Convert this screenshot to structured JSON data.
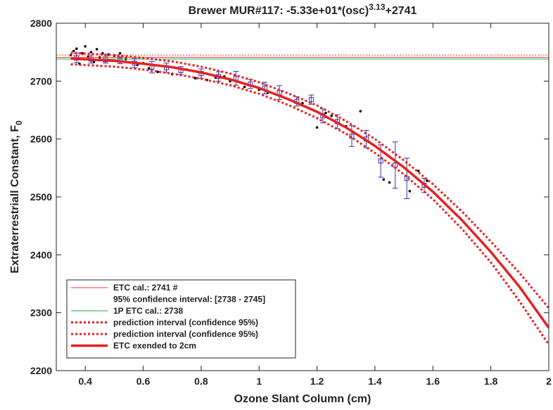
{
  "chart_data": {
    "type": "line",
    "title": "Brewer MUR#117: -5.33e+01*(osc)",
    "title_exponent": "3.13",
    "title_suffix": "+2741",
    "x_label": "Ozone Slant Column (cm)",
    "y_label": "Extraterrestriall Constant, F",
    "y_label_subscript": "0",
    "xlim": [
      0.3,
      2
    ],
    "ylim": [
      2200,
      2800
    ],
    "xticks": [
      0.4,
      0.6,
      0.8,
      1,
      1.2,
      1.4,
      1.6,
      1.8,
      2
    ],
    "yticks": [
      2200,
      2300,
      2400,
      2500,
      2600,
      2700,
      2800
    ],
    "grid": false,
    "legend": "lower left",
    "series": [
      {
        "type": "scatter",
        "color": "#000000",
        "x": [
          0.35,
          0.36,
          0.37,
          0.38,
          0.39,
          0.4,
          0.41,
          0.42,
          0.43,
          0.44,
          0.45,
          0.46,
          0.48,
          0.5,
          0.52,
          0.54,
          0.58,
          0.6,
          0.62,
          0.65,
          0.7,
          0.75,
          0.78,
          0.82,
          0.85,
          0.88,
          0.9,
          0.95,
          1.0,
          1.03,
          1.08,
          1.15,
          1.2,
          1.23,
          1.25,
          1.3,
          1.35,
          1.38,
          1.43,
          1.45,
          1.52,
          1.55,
          1.58
        ],
        "values": [
          2745,
          2752,
          2756,
          2730,
          2748,
          2760,
          2742,
          2750,
          2733,
          2755,
          2741,
          2748,
          2746,
          2744,
          2748,
          2738,
          2728,
          2731,
          2722,
          2716,
          2712,
          2720,
          2705,
          2702,
          2706,
          2708,
          2700,
          2690,
          2685,
          2680,
          2673,
          2662,
          2620,
          2645,
          2640,
          2622,
          2648,
          2595,
          2530,
          2525,
          2510,
          2545,
          2528
        ]
      },
      {
        "type": "errorbar",
        "color": "#3333aa",
        "x": [
          0.37,
          0.42,
          0.47,
          0.52,
          0.57,
          0.63,
          0.68,
          0.73,
          0.8,
          0.86,
          0.92,
          0.97,
          1.02,
          1.07,
          1.13,
          1.18,
          1.22,
          1.27,
          1.32,
          1.37,
          1.42,
          1.47,
          1.51,
          1.57
        ],
        "values": [
          2740,
          2738,
          2737,
          2736,
          2731,
          2724,
          2723,
          2718,
          2713,
          2708,
          2705,
          2695,
          2688,
          2680,
          2665,
          2668,
          2640,
          2630,
          2605,
          2600,
          2562,
          2555,
          2532,
          2520
        ],
        "errors": [
          8,
          7,
          6,
          6,
          8,
          10,
          8,
          7,
          8,
          8,
          12,
          8,
          10,
          12,
          8,
          8,
          12,
          12,
          18,
          15,
          28,
          40,
          35,
          12
        ]
      },
      {
        "type": "line",
        "name": [
          "ETC cal.: 2741  #",
          "95% confidence interval: [2738 - 2745]"
        ],
        "color": "#ff3333",
        "width": 1,
        "dash": "none",
        "x": [
          0.3,
          2
        ],
        "values": [
          2741,
          2741
        ]
      },
      {
        "type": "line",
        "color": "#ff3333",
        "width": 1,
        "dash": "2 2",
        "x": [
          0.3,
          2
        ],
        "values": [
          2745,
          2745
        ]
      },
      {
        "type": "line",
        "color": "#ff3333",
        "width": 1,
        "dash": "2 2",
        "x": [
          0.3,
          2
        ],
        "values": [
          2738,
          2738
        ]
      },
      {
        "type": "line",
        "name": [
          "1P ETC cal.: 2738"
        ],
        "color": "#22aa44",
        "width": 1,
        "dash": "none",
        "x": [
          0.3,
          2
        ],
        "values": [
          2738,
          2738
        ]
      },
      {
        "type": "line",
        "name": [
          "prediction interval (confidence 95%)"
        ],
        "color": "#e82020",
        "width": 3,
        "dash": "3 3",
        "x": [
          0.35,
          0.5,
          0.6,
          0.7,
          0.8,
          0.9,
          1.0,
          1.1,
          1.2,
          1.3,
          1.4,
          1.5,
          1.6,
          1.7,
          1.8,
          1.9,
          2.0
        ],
        "values": [
          2749,
          2745,
          2740,
          2734,
          2725,
          2713,
          2698,
          2679,
          2658,
          2631,
          2600,
          2563,
          2522,
          2475,
          2423,
          2368,
          2308
        ]
      },
      {
        "type": "line",
        "name": [
          "prediction interval (confidence 95%)"
        ],
        "color": "#e82020",
        "width": 3,
        "dash": "3 3",
        "x": [
          0.35,
          0.5,
          0.6,
          0.7,
          0.8,
          0.9,
          1.0,
          1.1,
          1.2,
          1.3,
          1.4,
          1.5,
          1.6,
          1.7,
          1.8,
          1.9,
          2.0
        ],
        "values": [
          2729,
          2725,
          2720,
          2713,
          2704,
          2693,
          2678,
          2659,
          2636,
          2609,
          2576,
          2539,
          2496,
          2445,
          2387,
          2319,
          2245
        ]
      },
      {
        "type": "line",
        "name": [
          " ETC exended to 2cm"
        ],
        "color": "#e82020",
        "width": 3.5,
        "dash": "none",
        "x": [
          0.35,
          0.5,
          0.6,
          0.7,
          0.8,
          0.9,
          1.0,
          1.1,
          1.2,
          1.3,
          1.4,
          1.5,
          1.6,
          1.7,
          1.8,
          1.9,
          2.0
        ],
        "values": [
          2739,
          2735,
          2730,
          2724,
          2715,
          2703,
          2688,
          2669,
          2647,
          2620,
          2588,
          2551,
          2509,
          2460,
          2405,
          2344,
          2274
        ]
      }
    ]
  }
}
